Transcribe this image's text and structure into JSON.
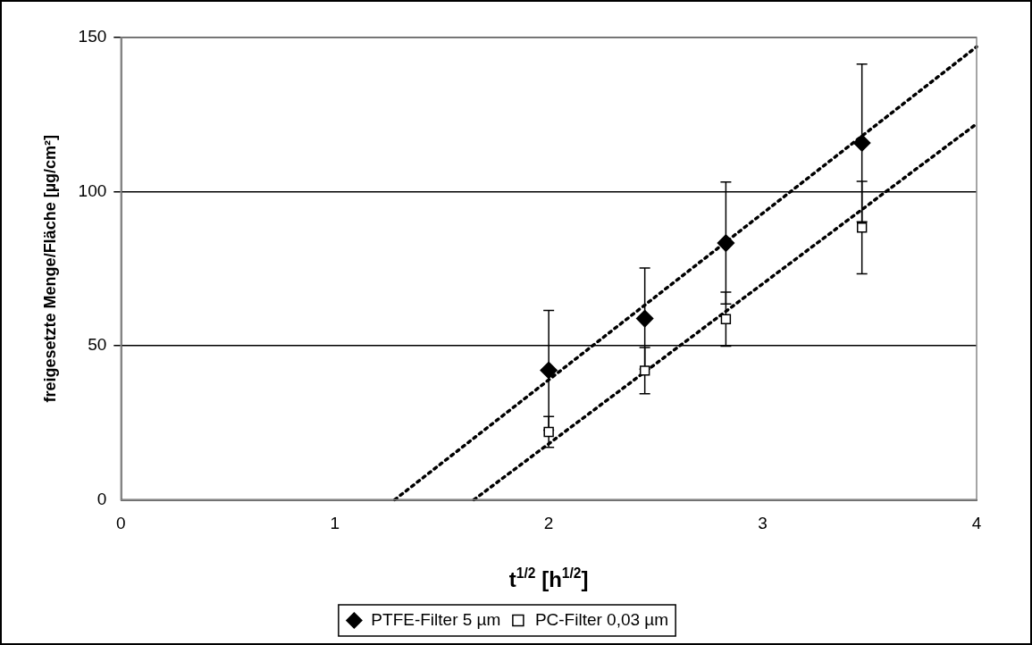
{
  "chart_data": {
    "type": "scatter",
    "xlabel": "t$^{1/2}$ [h$^{1/2}$]",
    "ylabel": "freigesetzte Menge/Fläche [µg/cm²]",
    "xlim": [
      0,
      4
    ],
    "xticks": [
      0,
      1,
      2,
      3,
      4
    ],
    "ylim": [
      0,
      150
    ],
    "yticks": [
      0,
      50,
      100,
      150
    ],
    "grid": "y",
    "legend": "bottom",
    "series": [
      {
        "name": "PTFE-Filter 5 µm",
        "color": "#000000",
        "marker": "diamond",
        "x": [
          2,
          2.449,
          2.828,
          3.464
        ],
        "values": [
          42,
          58.8,
          83.3,
          115.8
        ],
        "errors": [
          19.4,
          16.4,
          19.8,
          25.6
        ]
      },
      {
        "name": "PC-Filter 0,03 µm",
        "color": "#000000",
        "marker": "square",
        "x": [
          2,
          2.449,
          2.828,
          3.464
        ],
        "values": [
          22,
          41.9,
          58.6,
          88.3
        ],
        "errors": [
          5,
          7.5,
          8.8,
          15
        ]
      },
      {
        "type": "line",
        "color": "#000000",
        "marker": "none",
        "line_style": "dotted",
        "x": [
          1.28,
          4
        ],
        "values": [
          0,
          147
        ]
      },
      {
        "type": "line",
        "color": "#000000",
        "marker": "none",
        "line_style": "dotted",
        "x": [
          1.65,
          4
        ],
        "values": [
          0,
          122
        ]
      }
    ]
  }
}
